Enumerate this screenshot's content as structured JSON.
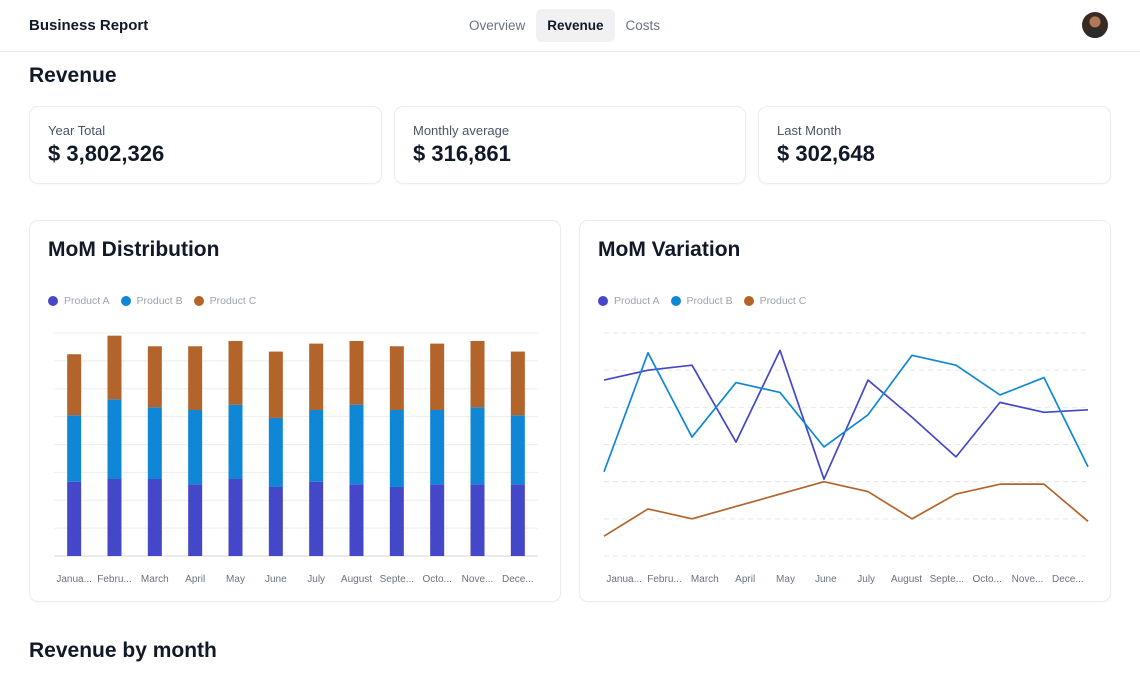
{
  "header": {
    "brand": "Business Report",
    "tabs": [
      {
        "label": "Overview",
        "active": false
      },
      {
        "label": "Revenue",
        "active": true
      },
      {
        "label": "Costs",
        "active": false
      }
    ]
  },
  "page_title": "Revenue",
  "kpis": [
    {
      "label": "Year Total",
      "value": "$ 3,802,326"
    },
    {
      "label": "Monthly average",
      "value": "$ 316,861"
    },
    {
      "label": "Last Month",
      "value": "$ 302,648"
    }
  ],
  "colors": {
    "product_a": "#4447c7",
    "product_b": "#1087d6",
    "product_c": "#b2642b"
  },
  "distribution": {
    "title": "MoM Distribution",
    "legend": [
      "Product A",
      "Product B",
      "Product C"
    ]
  },
  "variation": {
    "title": "MoM Variation",
    "legend": [
      "Product A",
      "Product B",
      "Product C"
    ]
  },
  "section2_title": "Revenue by month",
  "chart_data": [
    {
      "type": "bar",
      "stacked": true,
      "title": "MoM Distribution",
      "categories": [
        "Janua...",
        "Febru...",
        "March",
        "April",
        "May",
        "June",
        "July",
        "August",
        "Septe...",
        "Octo...",
        "Nove...",
        "Dece..."
      ],
      "series": [
        {
          "name": "Product A",
          "values": [
            28,
            29,
            29,
            27,
            29,
            26,
            28,
            27,
            26,
            27,
            27,
            27
          ]
        },
        {
          "name": "Product B",
          "values": [
            25,
            30,
            27,
            28,
            28,
            26,
            27,
            30,
            29,
            28,
            29,
            26
          ]
        },
        {
          "name": "Product C",
          "values": [
            23,
            24,
            23,
            24,
            24,
            25,
            25,
            24,
            24,
            25,
            25,
            24
          ]
        }
      ],
      "ylim": [
        0,
        84
      ],
      "grid": true,
      "legend_position": "top-left"
    },
    {
      "type": "line",
      "title": "MoM Variation",
      "categories": [
        "Janua...",
        "Febru...",
        "March",
        "April",
        "May",
        "June",
        "July",
        "August",
        "Septe...",
        "Octo...",
        "Nove...",
        "Dece..."
      ],
      "series": [
        {
          "name": "Product A",
          "values": [
            71,
            75,
            77,
            46,
            83,
            31,
            71,
            56,
            40,
            62,
            58,
            59
          ]
        },
        {
          "name": "Product B",
          "values": [
            34,
            82,
            48,
            70,
            66,
            44,
            57,
            81,
            77,
            65,
            72,
            36
          ]
        },
        {
          "name": "Product C",
          "values": [
            8,
            19,
            15,
            20,
            25,
            30,
            26,
            15,
            25,
            29,
            29,
            14
          ]
        }
      ],
      "ylim": [
        0,
        90
      ],
      "grid": true,
      "legend_position": "top-left"
    }
  ]
}
